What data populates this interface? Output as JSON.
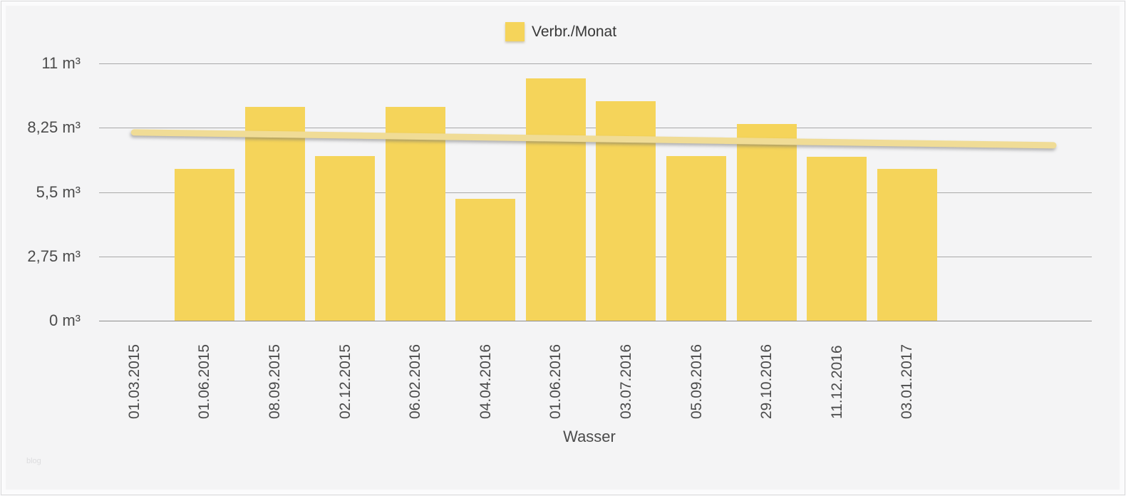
{
  "watermark": "blog",
  "colors": {
    "bar": "#f5d45a",
    "trend_line": "#f0dc96",
    "gridline": "#a9a9a9",
    "axis_line": "#8c8c8c",
    "text": "#4b4b4b",
    "background": "#f4f4f5",
    "outer_background": "#fbfbfc"
  },
  "chart_data": {
    "type": "bar",
    "title": "",
    "xlabel": "Wasser",
    "ylabel": "",
    "unit": "m³",
    "legend_position": "top-center",
    "grid": true,
    "ylim": [
      0,
      11
    ],
    "y_ticks": {
      "labels": [
        "11 m³",
        "8,25 m³",
        "5,5 m³",
        "2,75 m³",
        "0 m³"
      ],
      "values": [
        11,
        8.25,
        5.5,
        2.75,
        0
      ]
    },
    "categories": [
      "01.03.2015",
      "01.06.2015",
      "08.09.2015",
      "02.12.2015",
      "06.02.2016",
      "04.04.2016",
      "01.06.2016",
      "03.07.2016",
      "05.09.2016",
      "29.10.2016",
      "11.12.2016",
      "03.01.2017"
    ],
    "series": [
      {
        "name": "Verbr./Monat",
        "values": [
          0,
          6.5,
          9.15,
          7.05,
          9.15,
          5.2,
          10.35,
          9.4,
          7.05,
          8.4,
          7.0,
          6.5
        ]
      }
    ],
    "trend": {
      "start_value": 8.05,
      "end_value": 7.5
    }
  }
}
